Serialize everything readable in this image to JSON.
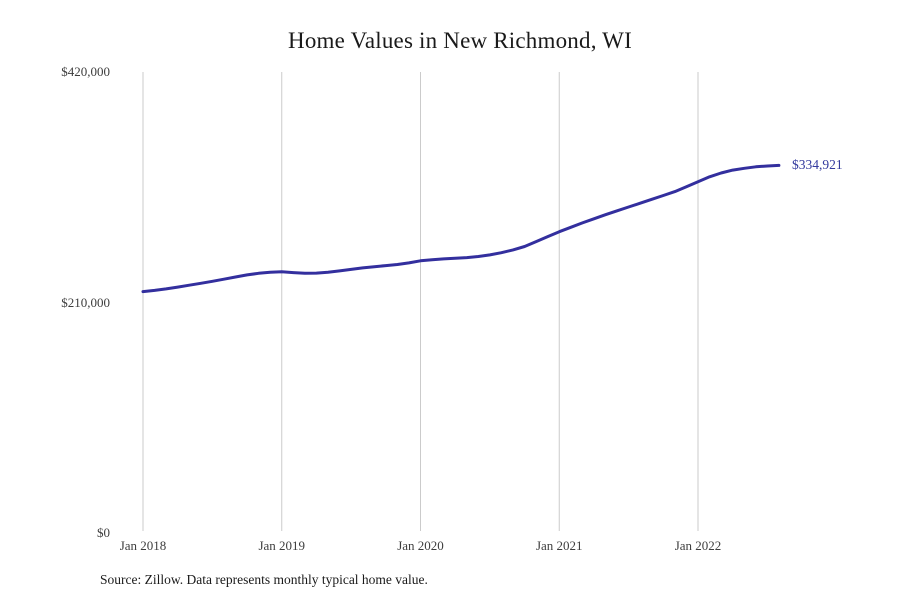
{
  "title": "Home Values in New Richmond, WI",
  "source_note": "Source: Zillow. Data represents monthly typical home value.",
  "end_label": "$334,921",
  "colors": {
    "line": "#332f9e",
    "grid": "#cbcbcb",
    "axis_text": "#3d3d3d",
    "title_text": "#1a1a1a",
    "source_text": "#1a1a1a",
    "end_label_text": "#333a9e",
    "background": "#ffffff"
  },
  "y_axis": {
    "ticks": [
      {
        "label": "$420,000",
        "value": 420000
      },
      {
        "label": "$210,000",
        "value": 210000
      },
      {
        "label": "$0",
        "value": 0
      }
    ]
  },
  "x_axis": {
    "ticks": [
      {
        "label": "Jan 2018",
        "month_index": 0
      },
      {
        "label": "Jan 2019",
        "month_index": 12
      },
      {
        "label": "Jan 2020",
        "month_index": 24
      },
      {
        "label": "Jan 2021",
        "month_index": 36
      },
      {
        "label": "Jan 2022",
        "month_index": 48
      }
    ]
  },
  "chart_data": {
    "type": "line",
    "title": "Home Values in New Richmond, WI",
    "xlabel": "",
    "ylabel": "",
    "ylim": [
      0,
      420000
    ],
    "grid": "vertical-only",
    "legend": "none",
    "series_name": "Monthly typical home value",
    "last_point_label": "$334,921",
    "x": [
      "Jan 2018",
      "Feb 2018",
      "Mar 2018",
      "Apr 2018",
      "May 2018",
      "Jun 2018",
      "Jul 2018",
      "Aug 2018",
      "Sep 2018",
      "Oct 2018",
      "Nov 2018",
      "Dec 2018",
      "Jan 2019",
      "Feb 2019",
      "Mar 2019",
      "Apr 2019",
      "May 2019",
      "Jun 2019",
      "Jul 2019",
      "Aug 2019",
      "Sep 2019",
      "Oct 2019",
      "Nov 2019",
      "Dec 2019",
      "Jan 2020",
      "Feb 2020",
      "Mar 2020",
      "Apr 2020",
      "May 2020",
      "Jun 2020",
      "Jul 2020",
      "Aug 2020",
      "Sep 2020",
      "Oct 2020",
      "Nov 2020",
      "Dec 2020",
      "Jan 2021",
      "Feb 2021",
      "Mar 2021",
      "Apr 2021",
      "May 2021",
      "Jun 2021",
      "Jul 2021",
      "Aug 2021",
      "Sep 2021",
      "Oct 2021",
      "Nov 2021",
      "Dec 2021",
      "Jan 2022",
      "Feb 2022",
      "Mar 2022",
      "Apr 2022",
      "May 2022",
      "Jun 2022",
      "Jul 2022",
      "Aug 2022"
    ],
    "values": [
      219900,
      221000,
      222400,
      224000,
      225800,
      227500,
      229300,
      231200,
      233200,
      235100,
      236600,
      237600,
      238000,
      237200,
      236600,
      236800,
      237600,
      238800,
      240200,
      241500,
      242600,
      243600,
      244600,
      246100,
      248000,
      249000,
      249700,
      250300,
      250900,
      251900,
      253400,
      255400,
      257900,
      261000,
      265500,
      270000,
      274500,
      278500,
      282500,
      286300,
      290000,
      293500,
      297000,
      300500,
      304000,
      307500,
      311000,
      315500,
      320000,
      324500,
      328000,
      330600,
      332300,
      333600,
      334400,
      334921
    ]
  }
}
